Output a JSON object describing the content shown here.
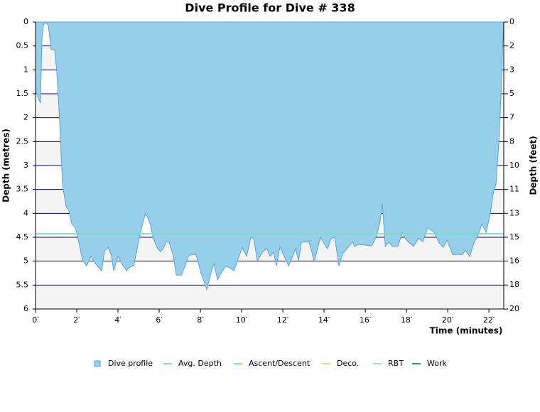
{
  "chart_data": {
    "type": "area",
    "title": "Dive Profile for Dive # 338",
    "xlabel": "Time (minutes)",
    "ylabel": "Depth (metres)",
    "y2label": "Depth (feet)",
    "xlim": [
      0,
      22.72
    ],
    "ylim": [
      0,
      6
    ],
    "y2lim": [
      0,
      19.685
    ],
    "xticks": [
      {
        "value": 0,
        "label": "0′"
      },
      {
        "value": 2,
        "label": "2′"
      },
      {
        "value": 4,
        "label": "4′"
      },
      {
        "value": 6,
        "label": "6′"
      },
      {
        "value": 8,
        "label": "8′"
      },
      {
        "value": 10,
        "label": "10′"
      },
      {
        "value": 12,
        "label": "12′"
      },
      {
        "value": 14,
        "label": "14′"
      },
      {
        "value": 16,
        "label": "16′"
      },
      {
        "value": 18,
        "label": "18′"
      },
      {
        "value": 20,
        "label": "20′"
      },
      {
        "value": 22,
        "label": "22′"
      }
    ],
    "yticks": [
      0,
      0.5,
      1,
      1.5,
      2,
      2.5,
      3,
      3.5,
      4,
      4.5,
      5,
      5.5,
      6
    ],
    "y2ticks": [
      0,
      {
        "value": 1.64,
        "label": "2"
      },
      {
        "value": 3.28,
        "label": "3"
      },
      {
        "value": 4.92,
        "label": "5"
      },
      {
        "value": 6.56,
        "label": "7"
      },
      {
        "value": 8.2,
        "label": "8"
      },
      {
        "value": 9.84,
        "label": "10"
      },
      {
        "value": 11.48,
        "label": "11"
      },
      {
        "value": 13.12,
        "label": "13"
      },
      {
        "value": 14.76,
        "label": "15"
      },
      {
        "value": 16.4,
        "label": "16"
      },
      {
        "value": 18.04,
        "label": "18"
      },
      {
        "value": 19.69,
        "label": "20"
      }
    ],
    "x": [
      0,
      0.17,
      0.24,
      0.31,
      0.38,
      0.48,
      0.62,
      0.76,
      0.93,
      1.03,
      1.17,
      1.31,
      1.48,
      1.62,
      1.76,
      1.93,
      2.1,
      2.28,
      2.48,
      2.69,
      2.9,
      3.21,
      3.34,
      3.52,
      3.69,
      3.79,
      4.0,
      4.21,
      4.41,
      4.59,
      4.76,
      4.97,
      5.17,
      5.34,
      5.55,
      5.72,
      5.93,
      6.07,
      6.21,
      6.34,
      6.48,
      6.69,
      6.83,
      7.07,
      7.24,
      7.41,
      7.59,
      7.79,
      8.03,
      8.31,
      8.55,
      8.66,
      8.83,
      9.03,
      9.24,
      9.45,
      9.62,
      9.83,
      10.03,
      10.24,
      10.45,
      10.59,
      10.76,
      10.97,
      11.21,
      11.38,
      11.55,
      11.69,
      11.86,
      12.07,
      12.28,
      12.48,
      12.62,
      12.76,
      12.9,
      13.14,
      13.28,
      13.52,
      13.83,
      14.03,
      14.17,
      14.34,
      14.52,
      14.72,
      14.9,
      15.17,
      15.38,
      15.48,
      15.69,
      16.31,
      16.55,
      16.72,
      16.83,
      16.97,
      17.14,
      17.31,
      17.59,
      17.79,
      18.0,
      18.34,
      18.59,
      18.79,
      19.03,
      19.34,
      19.59,
      19.79,
      19.97,
      20.24,
      20.72,
      20.86,
      21.07,
      21.28,
      21.45,
      21.66,
      21.86,
      22.07,
      22.21,
      22.34,
      22.48,
      22.59,
      22.66,
      22.72
    ],
    "series": [
      {
        "name": "Dive profile",
        "color": "#95cfea",
        "values": [
          1.44,
          1.62,
          1.69,
          0.36,
          0.07,
          0,
          0.07,
          0.58,
          0.58,
          1.03,
          2.07,
          3.4,
          3.85,
          3.94,
          4.22,
          4.3,
          4.6,
          4.98,
          5.1,
          4.9,
          5.05,
          5.2,
          4.8,
          4.71,
          4.89,
          5.2,
          4.9,
          5.07,
          5.2,
          5.12,
          5.1,
          4.65,
          4.26,
          4.0,
          4.2,
          4.53,
          4.74,
          4.8,
          4.72,
          4.6,
          4.6,
          4.89,
          5.29,
          5.29,
          5.12,
          4.9,
          4.86,
          4.86,
          5.25,
          5.59,
          5.18,
          5.05,
          5.39,
          5.23,
          5.1,
          5.15,
          5.2,
          4.96,
          4.71,
          4.9,
          4.5,
          4.53,
          4.99,
          4.84,
          4.72,
          4.9,
          4.81,
          5.1,
          4.7,
          4.9,
          5.1,
          4.89,
          4.74,
          4.99,
          4.6,
          4.6,
          4.6,
          5.0,
          4.5,
          4.65,
          4.74,
          4.53,
          4.5,
          5.1,
          4.84,
          4.71,
          4.59,
          4.69,
          4.65,
          4.68,
          4.47,
          4.18,
          3.8,
          4.69,
          4.6,
          4.69,
          4.69,
          4.4,
          4.56,
          4.69,
          4.52,
          4.59,
          4.3,
          4.4,
          4.62,
          4.71,
          4.56,
          4.86,
          4.86,
          4.77,
          4.9,
          4.6,
          4.49,
          4.22,
          4.4,
          4.0,
          3.57,
          3.4,
          2.51,
          1.47,
          0.58,
          0
        ]
      }
    ],
    "lines": [
      {
        "name": "Avg. Depth",
        "color": "#7fdcc0",
        "value": 4.43
      },
      {
        "name": "Ascent/Descent",
        "color": "#90e890"
      },
      {
        "name": "Deco.",
        "color": "#d8e07a"
      },
      {
        "name": "RBT",
        "color": "#a0d8f0"
      },
      {
        "name": "Work",
        "color": "#20a090"
      }
    ]
  }
}
